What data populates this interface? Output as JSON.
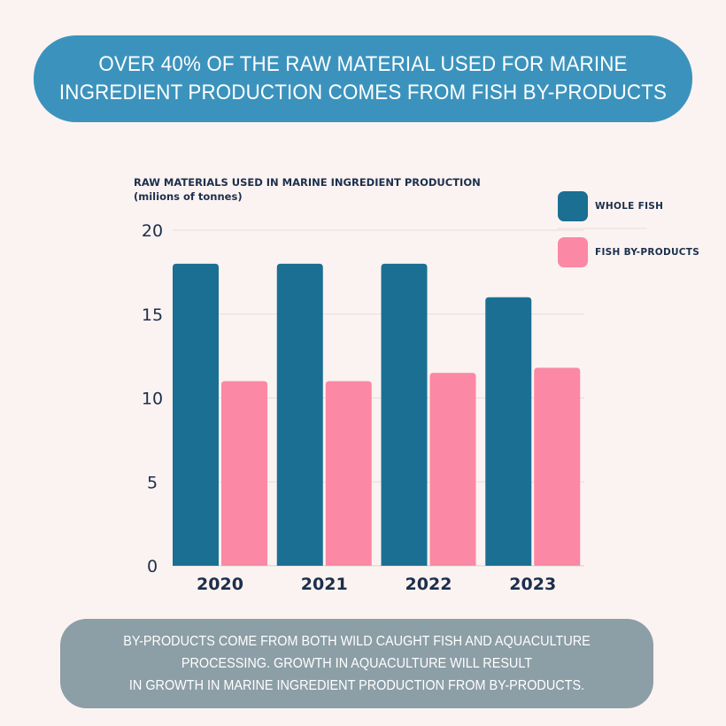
{
  "banner": {
    "line1": "OVER 40% OF THE RAW MATERIAL USED FOR MARINE",
    "line2": "INGREDIENT PRODUCTION COMES FROM FISH BY-PRODUCTS"
  },
  "footer": {
    "line1": "BY-PRODUCTS COME FROM BOTH WILD CAUGHT FISH AND AQUACULTURE",
    "line2": "PROCESSING. GROWTH IN AQUACULTURE WILL RESULT",
    "line3": "IN GROWTH IN MARINE INGREDIENT PRODUCTION FROM BY-PRODUCTS."
  },
  "colors": {
    "whole_fish": "#1a6f93",
    "by_products": "#fb88a4",
    "text": "#1c2f4c"
  },
  "chart_data": {
    "type": "bar",
    "title": "RAW MATERIALS USED IN MARINE INGREDIENT PRODUCTION",
    "subtitle": "(milions of tonnes)",
    "xlabel": "",
    "ylabel": "",
    "categories": [
      "2020",
      "2021",
      "2022",
      "2023"
    ],
    "series": [
      {
        "name": "WHOLE FISH",
        "values": [
          18,
          18,
          18,
          16
        ]
      },
      {
        "name": "FISH BY-PRODUCTS",
        "values": [
          11,
          11,
          11.5,
          11.8
        ]
      }
    ],
    "ylim": [
      0,
      20
    ],
    "yticks": [
      "0",
      "5",
      "10",
      "15",
      "20"
    ],
    "grid": true,
    "legend": "top-right"
  }
}
